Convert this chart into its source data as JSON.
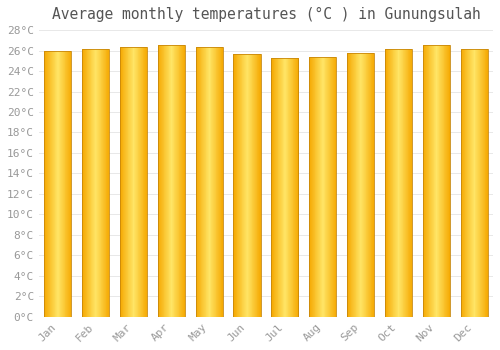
{
  "title": "Average monthly temperatures (°C ) in Gunungsulah",
  "months": [
    "Jan",
    "Feb",
    "Mar",
    "Apr",
    "May",
    "Jun",
    "Jul",
    "Aug",
    "Sep",
    "Oct",
    "Nov",
    "Dec"
  ],
  "values": [
    26.0,
    26.2,
    26.3,
    26.5,
    26.3,
    25.7,
    25.3,
    25.4,
    25.8,
    26.2,
    26.5,
    26.2
  ],
  "ylim": [
    0,
    28
  ],
  "ytick_step": 2,
  "bar_color_left": "#F5A800",
  "bar_color_center": "#FFE566",
  "bar_color_right": "#F5A800",
  "bar_edge_color": "#C8870A",
  "grid_color": "#e8e8e8",
  "background_color": "#ffffff",
  "title_fontsize": 10.5,
  "tick_fontsize": 8,
  "tick_label_color": "#999999",
  "title_color": "#555555"
}
